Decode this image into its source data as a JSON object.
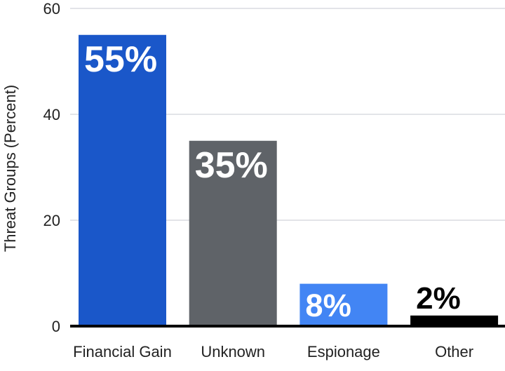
{
  "chart_data": {
    "type": "bar",
    "y_label": "Threat Groups (Percent)",
    "categories": [
      "Financial Gain",
      "Unknown",
      "Espionage",
      "Other"
    ],
    "values": [
      55,
      35,
      8,
      2
    ],
    "value_labels": [
      "55%",
      "35%",
      "8%",
      "2%"
    ],
    "colors": [
      "#1a57c9",
      "#5f6368",
      "#4285f4",
      "#000000"
    ],
    "ylim": [
      0,
      60
    ],
    "yticks": [
      0,
      20,
      40,
      60
    ],
    "grid": true
  }
}
